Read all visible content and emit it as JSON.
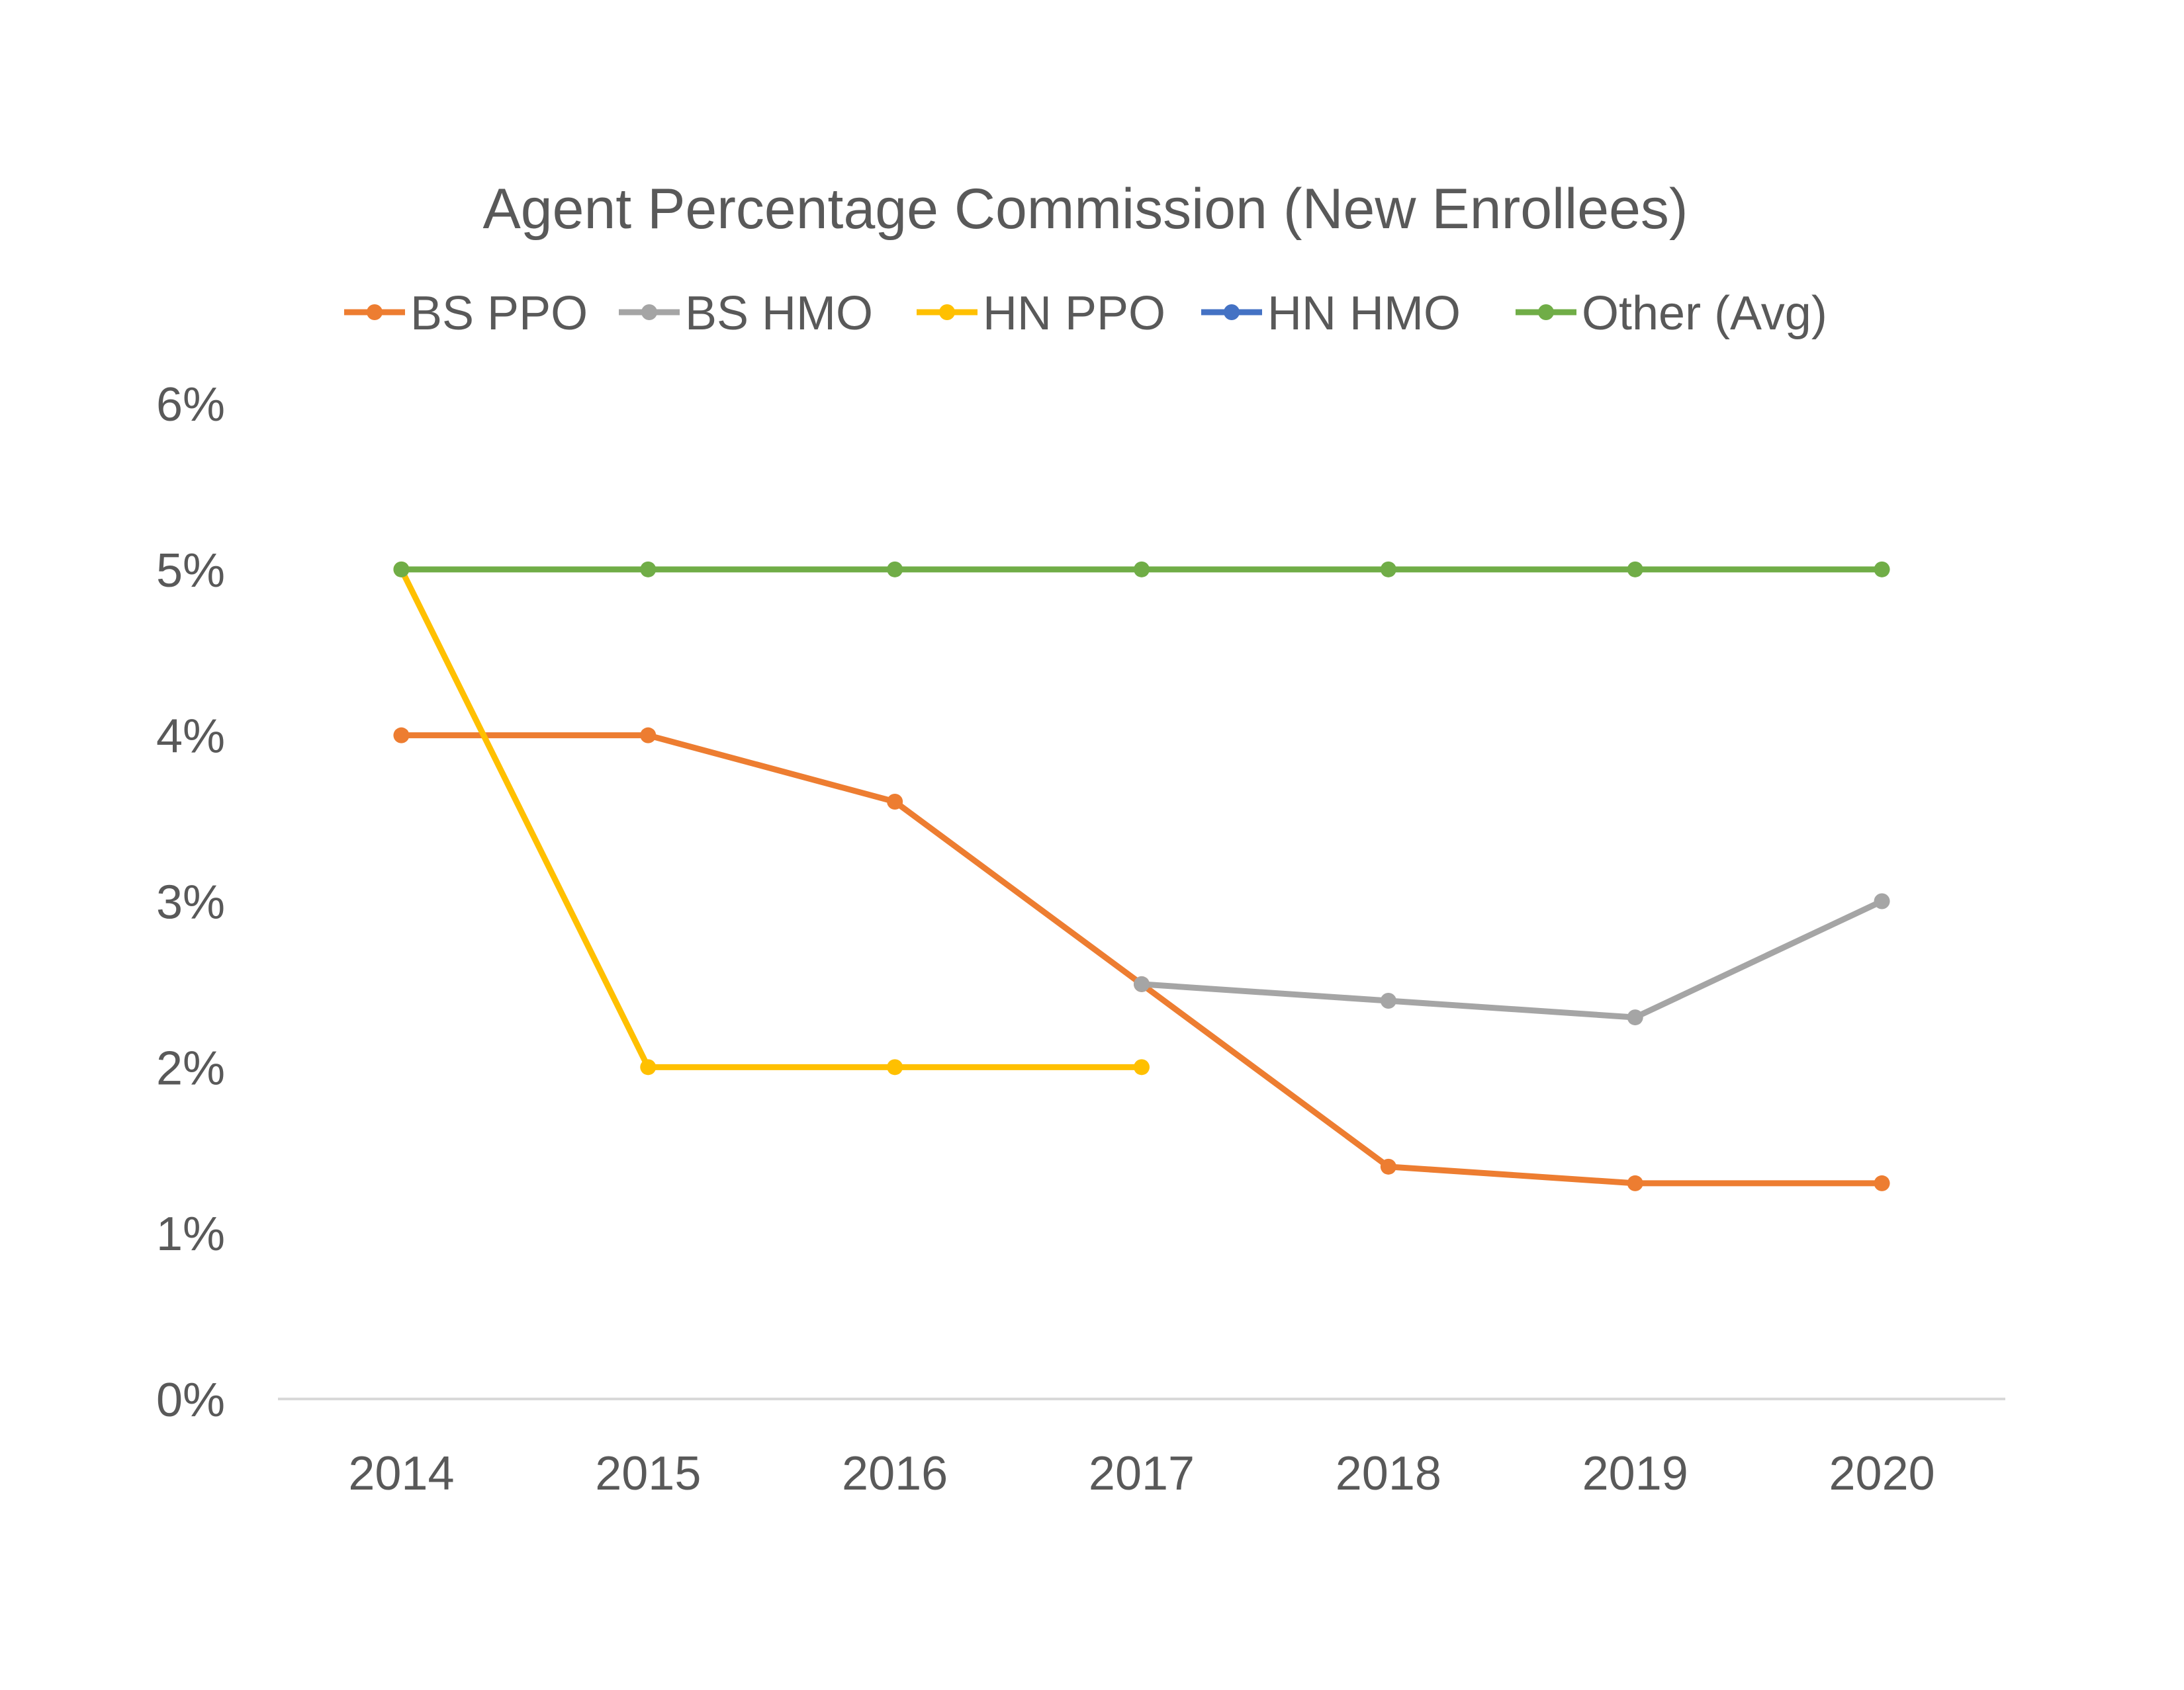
{
  "chart_data": {
    "type": "line",
    "title": "Agent Percentage Commission (New Enrollees)",
    "xlabel": "",
    "ylabel": "",
    "categories": [
      "2014",
      "2015",
      "2016",
      "2017",
      "2018",
      "2019",
      "2020"
    ],
    "ylim": [
      0,
      0.06
    ],
    "yticks": [
      0,
      0.01,
      0.02,
      0.03,
      0.04,
      0.05,
      0.06
    ],
    "ytick_labels": [
      "0%",
      "1%",
      "2%",
      "3%",
      "4%",
      "5%",
      "6%"
    ],
    "grid": false,
    "legend": "top",
    "series": [
      {
        "name": "BS PPO",
        "color": "#ED7D31",
        "values": [
          0.04,
          0.04,
          0.036,
          0.025,
          0.014,
          0.013,
          0.013
        ]
      },
      {
        "name": "BS HMO",
        "color": "#A5A5A5",
        "values": [
          null,
          null,
          null,
          0.025,
          0.024,
          0.023,
          0.03
        ]
      },
      {
        "name": "HN PPO",
        "color": "#FFC000",
        "values": [
          0.05,
          0.02,
          0.02,
          0.02,
          null,
          null,
          null
        ]
      },
      {
        "name": "HN HMO",
        "color": "#4472C4",
        "values": [
          null,
          null,
          null,
          null,
          null,
          null,
          null
        ]
      },
      {
        "name": "Other (Avg)",
        "color": "#70AD47",
        "values": [
          0.05,
          0.05,
          0.05,
          0.05,
          0.05,
          0.05,
          0.05
        ]
      }
    ]
  }
}
